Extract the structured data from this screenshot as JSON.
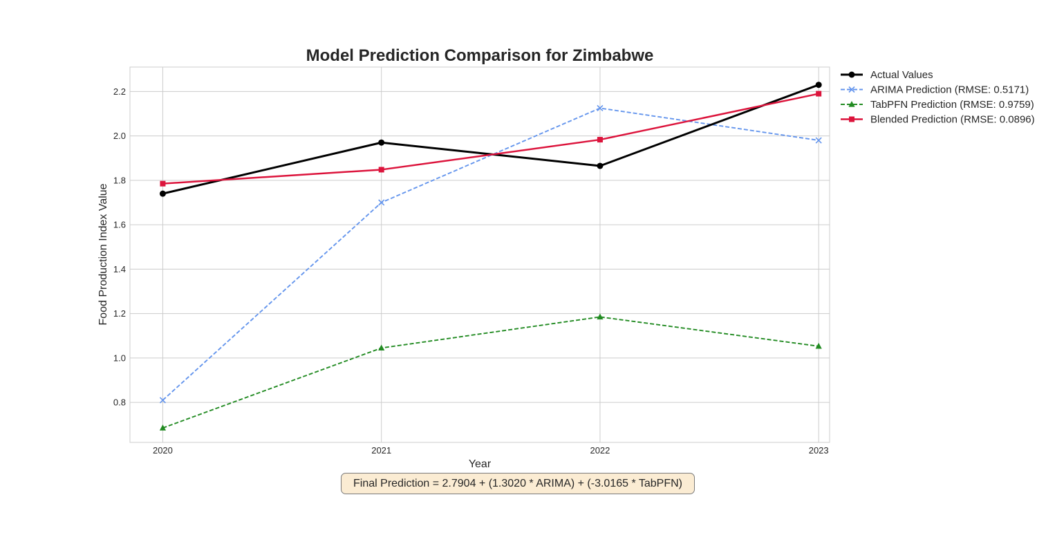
{
  "chart_data": {
    "type": "line",
    "title": "Model Prediction Comparison for Zimbabwe",
    "xlabel": "Year",
    "ylabel": "Food Production Index Value",
    "x": [
      2020,
      2021,
      2022,
      2023
    ],
    "x_tick_labels": [
      "2020",
      "2021",
      "2022",
      "2023"
    ],
    "y_ticks": [
      0.8,
      1.0,
      1.2,
      1.4,
      1.6,
      1.8,
      2.0,
      2.2
    ],
    "y_tick_labels": [
      "0.8",
      "1.0",
      "1.2",
      "1.4",
      "1.6",
      "1.8",
      "2.0",
      "2.2"
    ],
    "xlim": [
      2019.85,
      2023.05
    ],
    "ylim": [
      0.62,
      2.31
    ],
    "grid": true,
    "legend_position": "outside-top-right",
    "series": [
      {
        "name": "Actual Values",
        "values": [
          1.74,
          1.97,
          1.865,
          2.23
        ],
        "color": "#000000",
        "style": "solid",
        "marker": "circle"
      },
      {
        "name": "ARIMA Prediction (RMSE: 0.5171)",
        "values": [
          0.81,
          1.7,
          2.125,
          1.98
        ],
        "color": "#6495ed",
        "style": "dashed",
        "marker": "x"
      },
      {
        "name": "TabPFN Prediction (RMSE: 0.9759)",
        "values": [
          0.685,
          1.045,
          1.185,
          1.053
        ],
        "color": "#228b22",
        "style": "dashed",
        "marker": "triangle"
      },
      {
        "name": "Blended Prediction (RMSE: 0.0896)",
        "values": [
          1.785,
          1.848,
          1.983,
          2.19
        ],
        "color": "#dc143c",
        "style": "solid",
        "marker": "square"
      }
    ],
    "annotation": "Final Prediction = 2.7904 + (1.3020 * ARIMA) + (-3.0165 * TabPFN)",
    "annotation_box_color": "#fbecd3"
  }
}
